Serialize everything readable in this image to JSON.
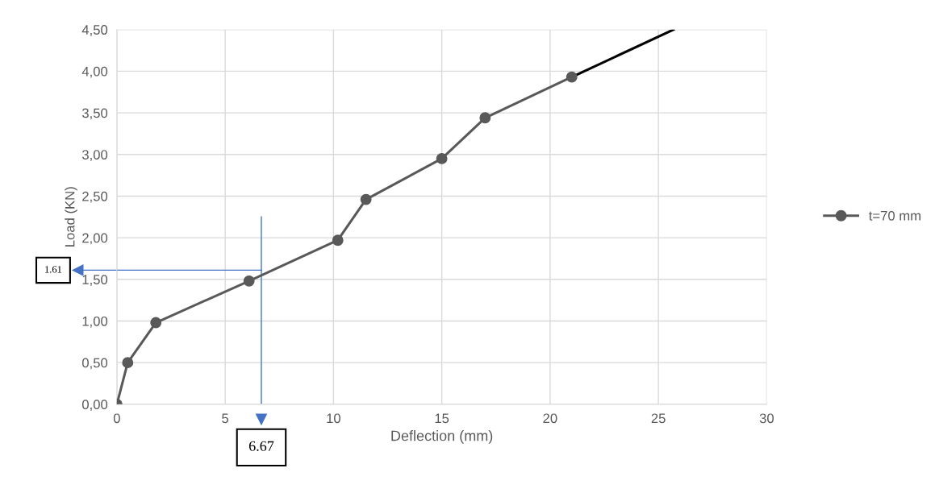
{
  "chart_data": {
    "type": "line",
    "xlabel": "Deflection (mm)",
    "ylabel": "Load (KN)",
    "xlim": [
      0,
      30
    ],
    "xticks": [
      0,
      5,
      10,
      15,
      20,
      25,
      30
    ],
    "ylim": [
      0,
      4.5
    ],
    "yticks": [
      {
        "value": 0,
        "label": "0,00"
      },
      {
        "value": 0.5,
        "label": "0,50"
      },
      {
        "value": 1,
        "label": "1,00"
      },
      {
        "value": 1.5,
        "label": "1,50"
      },
      {
        "value": 2,
        "label": "2,00"
      },
      {
        "value": 2.5,
        "label": "2,50"
      },
      {
        "value": 3,
        "label": "3,00"
      },
      {
        "value": 3.5,
        "label": "3,50"
      },
      {
        "value": 4,
        "label": "4,00"
      },
      {
        "value": 4.5,
        "label": "4,50"
      }
    ],
    "series": [
      {
        "name": "t=70 mm",
        "color": "#595959",
        "marker": "circle",
        "x": [
          0,
          0.5,
          1.8,
          6.1,
          10.2,
          11.5,
          15,
          17,
          21
        ],
        "values": [
          0,
          0.5,
          0.98,
          1.48,
          1.97,
          2.46,
          2.95,
          3.44,
          3.93
        ]
      },
      {
        "color": "#000000",
        "marker": "none",
        "x": [
          21,
          25.7
        ],
        "values": [
          3.93,
          4.5
        ]
      }
    ],
    "ref_lines": [
      {
        "axis": "y",
        "value": 1.61,
        "label": "1.61",
        "color": "#4472c4"
      },
      {
        "axis": "x",
        "value": 6.67,
        "label": "6.67",
        "color": "#4472c4"
      }
    ],
    "grid": true,
    "legend": "right"
  }
}
